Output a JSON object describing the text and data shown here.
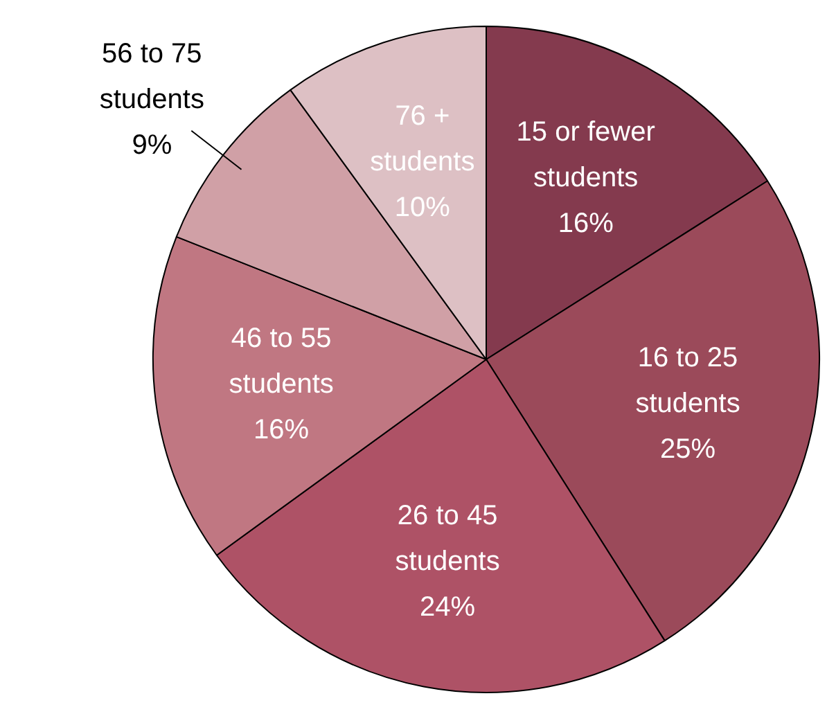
{
  "chart_data": {
    "type": "pie",
    "categories": [
      "15 or fewer students",
      "16 to 25 students",
      "26 to 45 students",
      "46 to 55 students",
      "56 to 75 students",
      "76 + students"
    ],
    "values": [
      16,
      25,
      24,
      16,
      9,
      10
    ],
    "colors": [
      "#843a4e",
      "#9b4a5a",
      "#ae5266",
      "#c07782",
      "#d0a0a6",
      "#ddc0c4"
    ],
    "value_labels": [
      "16%",
      "25%",
      "24%",
      "16%",
      "9%",
      "10%"
    ],
    "legend": false
  }
}
